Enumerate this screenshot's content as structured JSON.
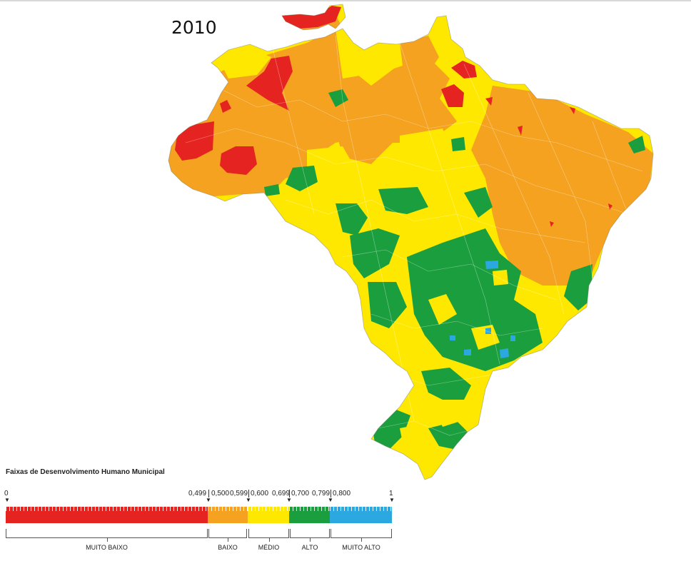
{
  "map": {
    "year": "2010",
    "legend_title": "Faixas  de Desenvolvimento Humano Municipal",
    "tick_labels": [
      "0",
      "0,499",
      "0,500",
      "0,599",
      "0,600",
      "0,699",
      "0,700",
      "0,799",
      "0,800",
      "1"
    ],
    "categories": [
      {
        "label": "MUITO BAIXO",
        "range": [
          0,
          0.499
        ],
        "color": "#e52421"
      },
      {
        "label": "BAIXO",
        "range": [
          0.5,
          0.599
        ],
        "color": "#f4a21f"
      },
      {
        "label": "MÉDIO",
        "range": [
          0.6,
          0.699
        ],
        "color": "#ffe800"
      },
      {
        "label": "ALTO",
        "range": [
          0.7,
          0.799
        ],
        "color": "#1b9e3e"
      },
      {
        "label": "MUITO ALTO",
        "range": [
          0.8,
          1
        ],
        "color": "#2ba8e0"
      }
    ]
  }
}
